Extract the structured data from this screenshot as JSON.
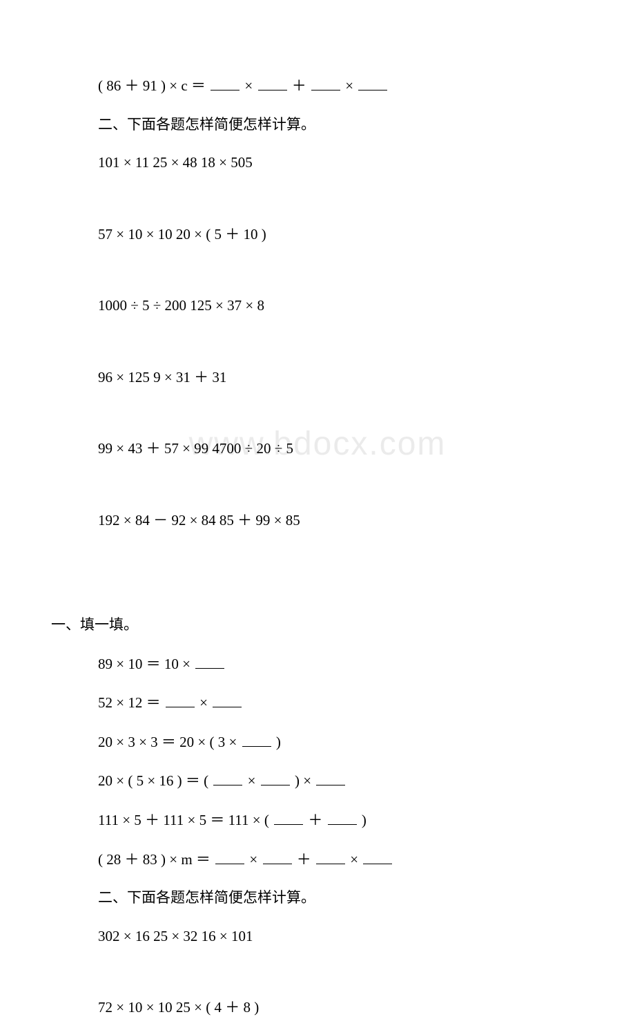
{
  "watermark": "www.bdocx.com",
  "colors": {
    "text": "#000000",
    "background": "#ffffff",
    "watermark": "#ebebeb"
  },
  "typography": {
    "body_fontsize": 21,
    "watermark_fontsize": 48
  },
  "block1": {
    "line1": {
      "prefix": "( 86 ＋ 91 ) × c ＝",
      "op1": "×",
      "op2": "＋",
      "op3": "×"
    },
    "section2_title": "二、下面各题怎样简便怎样计算。",
    "row1": "101 × 11     25 × 48     18 × 505",
    "row2": "57 × 10 × 10      20 × ( 5 ＋ 10 )",
    "row3": "1000 ÷ 5 ÷ 200      125 × 37 × 8",
    "row4": "96 × 125       9 × 31 ＋ 31",
    "row5": "99 × 43 ＋ 57 × 99    4700 ÷ 20 ÷ 5",
    "row6": "192 × 84 － 92 × 84   85 ＋ 99 × 85"
  },
  "block2": {
    "section1_title": "一、填一填。",
    "f1": {
      "prefix": "89 × 10 ＝ 10 ×"
    },
    "f2": {
      "prefix": "52 × 12 ＝",
      "op1": "×"
    },
    "f3": {
      "prefix": "20 × 3 × 3 ＝ 20 × ( 3 ×",
      "suffix": ")"
    },
    "f4": {
      "prefix": "20 × ( 5 × 16 ) ＝ (",
      "op1": "×",
      "mid": ") ×"
    },
    "f5": {
      "prefix": "111 × 5 ＋ 111 × 5 ＝ 111 × (",
      "op1": "＋",
      "suffix": ")"
    },
    "f6": {
      "prefix": "( 28 ＋ 83 ) × m ＝",
      "op1": "×",
      "op2": "＋",
      "op3": "×"
    },
    "section2_title": "二、下面各题怎样简便怎样计算。",
    "row1": "302 × 16     25 × 32     16 × 101",
    "row2": "72 × 10 × 10      25 × ( 4 ＋ 8 )"
  }
}
